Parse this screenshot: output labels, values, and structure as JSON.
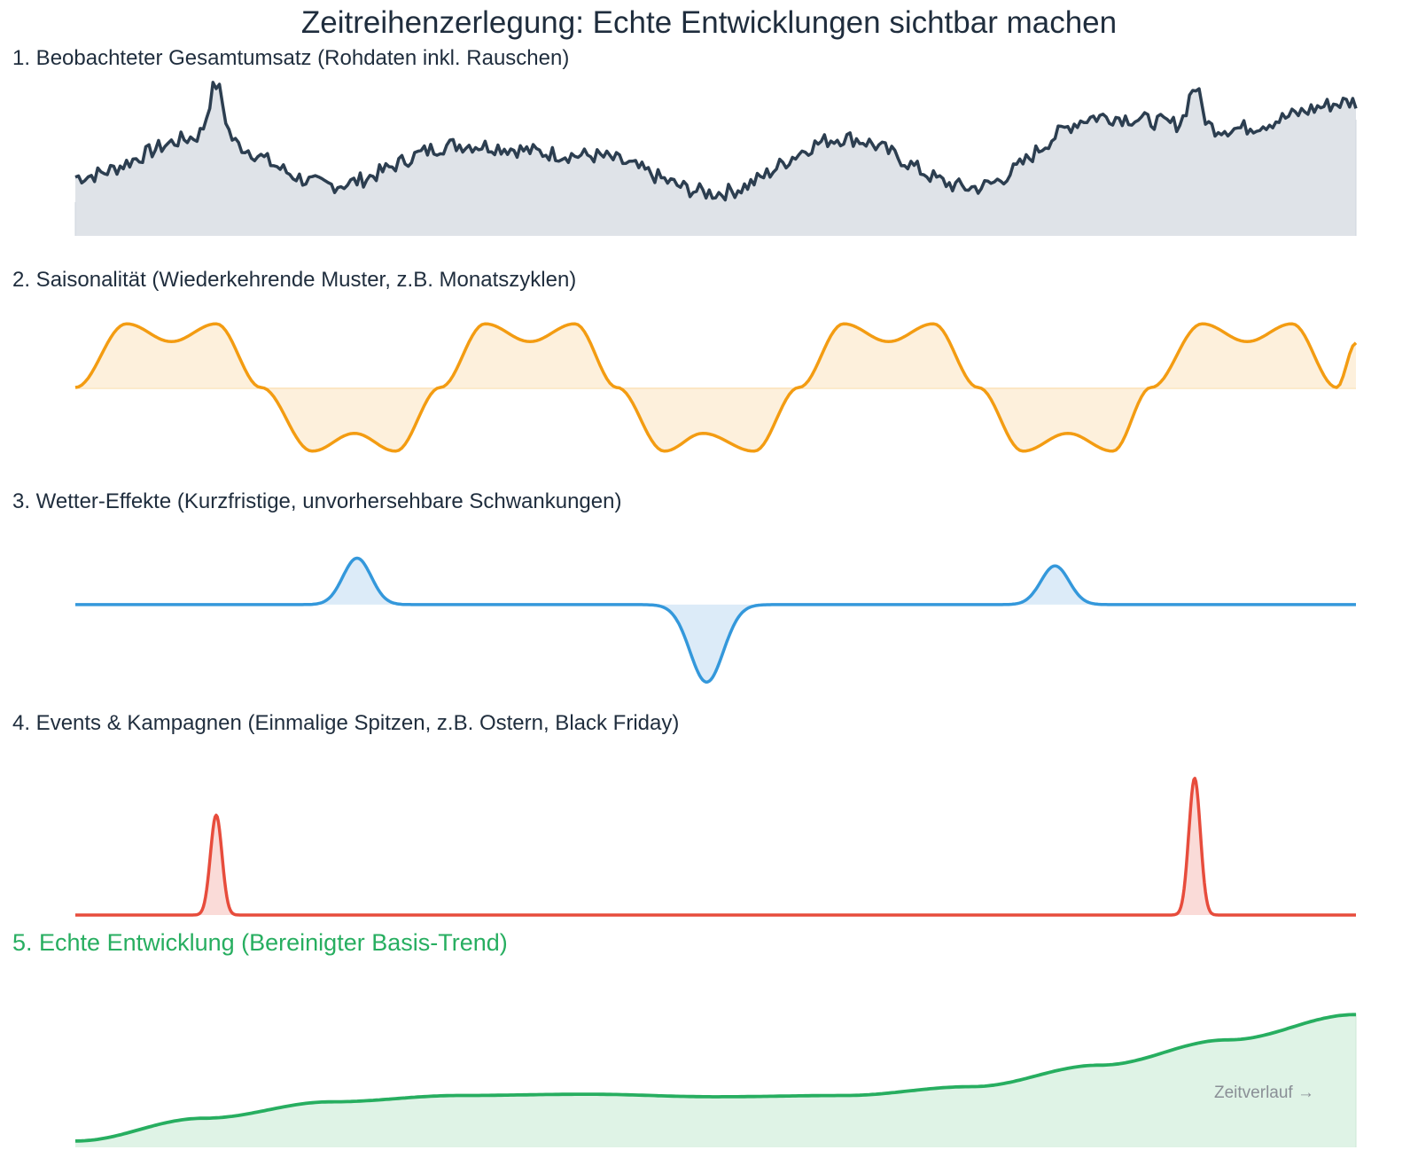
{
  "title": "Zeitreihenzerlegung: Echte Entwicklungen sichtbar machen",
  "time_axis_label": "Zeitverlauf →",
  "colors": {
    "observed": "#2c3e50",
    "seasonal": "#f39c12",
    "weather": "#3498db",
    "events": "#e74c3c",
    "trend": "#27ae60"
  },
  "chart_data": [
    {
      "type": "area",
      "title": "1. Beobachteter Gesamtumsatz (Rohdaten inkl. Rauschen)",
      "x": [
        0,
        10,
        20,
        30,
        40,
        50,
        60,
        70,
        80,
        90,
        100
      ],
      "values": [
        44,
        74,
        38,
        68,
        60,
        32,
        73,
        36,
        89,
        80,
        100
      ],
      "ylim": [
        0,
        110
      ]
    },
    {
      "type": "line",
      "title": "2. Saisonalität (Wiederkehrende Muster, z.B. Monatszyklen)",
      "x": [
        0,
        4,
        7.5,
        11,
        14.5,
        18.5,
        21.8,
        25,
        28.5,
        32,
        35.5,
        39,
        42.3,
        46,
        49,
        53,
        56.5,
        60,
        63.5,
        67,
        70.5,
        74,
        77.5,
        81,
        84,
        88,
        91.5,
        95,
        98.5,
        100
      ],
      "values": [
        0,
        1,
        0.72,
        1,
        0,
        -1,
        -0.72,
        -1,
        0,
        1,
        0.72,
        1,
        0,
        -1,
        -0.72,
        -1,
        0,
        1,
        0.72,
        1,
        0,
        -1,
        -0.72,
        -1,
        0,
        1,
        0.72,
        1,
        0,
        0.7
      ],
      "ylim": [
        -1.1,
        1.1
      ]
    },
    {
      "type": "line",
      "title": "3. Wetter-Effekte (Kurzfristige, unvorhersehbare Schwankungen)",
      "events": [
        {
          "x": 22.0,
          "value": 0.6
        },
        {
          "x": 49.3,
          "value": -1.0
        },
        {
          "x": 76.5,
          "value": 0.5
        }
      ],
      "ylim": [
        -1.1,
        0.8
      ]
    },
    {
      "type": "line",
      "title": "4. Events & Kampagnen (Einmalige Spitzen, z.B. Ostern, Black Friday)",
      "events": [
        {
          "x": 11.0,
          "value": 0.73
        },
        {
          "x": 87.4,
          "value": 1.0
        }
      ],
      "ylim": [
        0,
        1.05
      ]
    },
    {
      "type": "area",
      "title": "5. Echte Entwicklung (Bereinigter Basis-Trend)",
      "x": [
        0,
        10,
        20,
        30,
        40,
        50,
        60,
        70,
        80,
        90,
        100
      ],
      "values": [
        0,
        18,
        31,
        36,
        37,
        35,
        36,
        43,
        60,
        80,
        100
      ],
      "ylim": [
        -5,
        110
      ]
    }
  ]
}
